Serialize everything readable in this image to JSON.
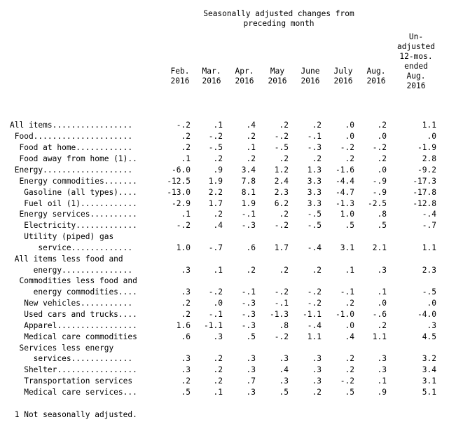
{
  "header": {
    "group_title": "Seasonally adjusted changes from\npreceding month",
    "columns": [
      "Feb.\n2016",
      "Mar.\n2016",
      "Apr.\n2016",
      "May\n2016",
      "June\n2016",
      "July\n2016",
      "Aug.\n2016"
    ],
    "unadjusted": "Un-\nadjusted\n12-mos.\nended\nAug.\n2016"
  },
  "rows": [
    {
      "label": "All items.................",
      "values": [
        "-.2",
        ".1",
        ".4",
        ".2",
        ".2",
        ".0",
        ".2",
        "1.1"
      ]
    },
    {
      "label": " Food.....................",
      "values": [
        ".2",
        "-.2",
        ".2",
        "-.2",
        "-.1",
        ".0",
        ".0",
        ".0"
      ]
    },
    {
      "label": "  Food at home............",
      "values": [
        ".2",
        "-.5",
        ".1",
        "-.5",
        "-.3",
        "-.2",
        "-.2",
        "-1.9"
      ]
    },
    {
      "label": "  Food away from home (1)..",
      "values": [
        ".1",
        ".2",
        ".2",
        ".2",
        ".2",
        ".2",
        ".2",
        "2.8"
      ]
    },
    {
      "label": " Energy...................",
      "values": [
        "-6.0",
        ".9",
        "3.4",
        "1.2",
        "1.3",
        "-1.6",
        ".0",
        "-9.2"
      ]
    },
    {
      "label": "  Energy commodities.......",
      "values": [
        "-12.5",
        "1.9",
        "7.8",
        "2.4",
        "3.3",
        "-4.4",
        "-.9",
        "-17.3"
      ]
    },
    {
      "label": "   Gasoline (all types)....",
      "values": [
        "-13.0",
        "2.2",
        "8.1",
        "2.3",
        "3.3",
        "-4.7",
        "-.9",
        "-17.8"
      ]
    },
    {
      "label": "   Fuel oil (1)............",
      "values": [
        "-2.9",
        "1.7",
        "1.9",
        "6.2",
        "3.3",
        "-1.3",
        "-2.5",
        "-12.8"
      ]
    },
    {
      "label": "  Energy services..........",
      "values": [
        ".1",
        ".2",
        "-.1",
        ".2",
        "-.5",
        "1.0",
        ".8",
        "-.4"
      ]
    },
    {
      "label": "   Electricity.............",
      "values": [
        "-.2",
        ".4",
        "-.3",
        "-.2",
        "-.5",
        ".5",
        ".5",
        "-.7"
      ]
    },
    {
      "label": "   Utility (piped) gas",
      "values": []
    },
    {
      "label": "      service.............",
      "values": [
        "1.0",
        "-.7",
        ".6",
        "1.7",
        "-.4",
        "3.1",
        "2.1",
        "1.1"
      ]
    },
    {
      "label": " All items less food and",
      "values": []
    },
    {
      "label": "     energy...............",
      "values": [
        ".3",
        ".1",
        ".2",
        ".2",
        ".2",
        ".1",
        ".3",
        "2.3"
      ]
    },
    {
      "label": "  Commodities less food and",
      "values": []
    },
    {
      "label": "     energy commodities....",
      "values": [
        ".3",
        "-.2",
        "-.1",
        "-.2",
        "-.2",
        "-.1",
        ".1",
        "-.5"
      ]
    },
    {
      "label": "   New vehicles...........",
      "values": [
        ".2",
        ".0",
        "-.3",
        "-.1",
        "-.2",
        ".2",
        ".0",
        ".0"
      ]
    },
    {
      "label": "   Used cars and trucks....",
      "values": [
        ".2",
        "-.1",
        "-.3",
        "-1.3",
        "-1.1",
        "-1.0",
        "-.6",
        "-4.0"
      ]
    },
    {
      "label": "   Apparel.................",
      "values": [
        "1.6",
        "-1.1",
        "-.3",
        ".8",
        "-.4",
        ".0",
        ".2",
        ".3"
      ]
    },
    {
      "label": "   Medical care commodities",
      "values": [
        ".6",
        ".3",
        ".5",
        "-.2",
        "1.1",
        ".4",
        "1.1",
        "4.5"
      ]
    },
    {
      "label": "  Services less energy",
      "values": []
    },
    {
      "label": "     services.............",
      "values": [
        ".3",
        ".2",
        ".3",
        ".3",
        ".3",
        ".2",
        ".3",
        "3.2"
      ]
    },
    {
      "label": "   Shelter.................",
      "values": [
        ".3",
        ".2",
        ".3",
        ".4",
        ".3",
        ".2",
        ".3",
        "3.4"
      ]
    },
    {
      "label": "   Transportation services",
      "values": [
        ".2",
        ".2",
        ".7",
        ".3",
        ".3",
        "-.2",
        ".1",
        "3.1"
      ]
    },
    {
      "label": "   Medical care services...",
      "values": [
        ".5",
        ".1",
        ".3",
        ".5",
        ".2",
        ".5",
        ".9",
        "5.1"
      ]
    }
  ],
  "footnote": " 1 Not seasonally adjusted."
}
